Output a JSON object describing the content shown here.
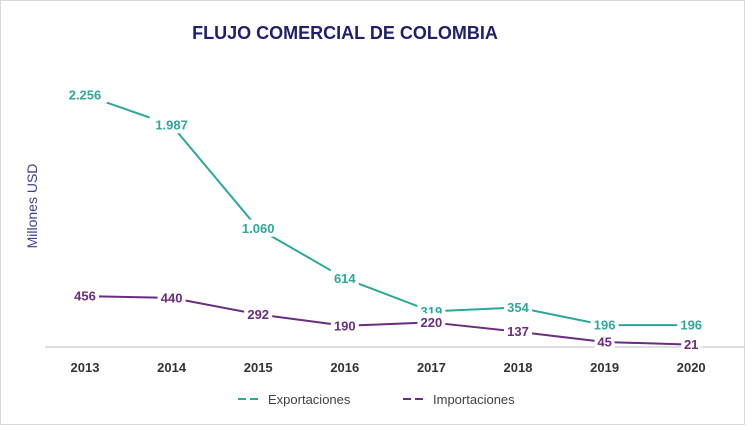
{
  "chart_data": {
    "type": "line",
    "title": "FLUJO COMERCIAL DE COLOMBIA",
    "xlabel": "",
    "ylabel": "Millones USD",
    "categories": [
      "2013",
      "2014",
      "2015",
      "2016",
      "2017",
      "2018",
      "2019",
      "2020"
    ],
    "ylim": [
      0,
      2400
    ],
    "grid": false,
    "legend_position": "bottom",
    "series": [
      {
        "name": "Exportaciones",
        "color": "#2ca89a",
        "values": [
          2256,
          1987,
          1060,
          614,
          319,
          354,
          196,
          196
        ],
        "labels": [
          "2.256",
          "1.987",
          "1.060",
          "614",
          "319",
          "354",
          "196",
          "196"
        ]
      },
      {
        "name": "Importaciones",
        "color": "#6a2c80",
        "values": [
          456,
          440,
          292,
          190,
          220,
          137,
          45,
          21
        ],
        "labels": [
          "456",
          "440",
          "292",
          "190",
          "220",
          "137",
          "45",
          "21"
        ]
      }
    ],
    "colors": {
      "title": "#1f1f6b",
      "ylabel": "#3d3d8c",
      "tick": "#333333",
      "axis": "#bfbfbf"
    }
  }
}
